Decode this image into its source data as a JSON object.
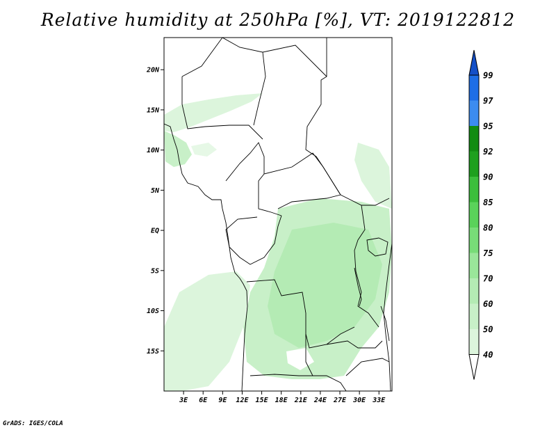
{
  "title": "Relative humidity at 250hPa [%], VT: 2019122812",
  "credit": "GrADS: IGES/COLA",
  "map": {
    "lon_range": [
      0,
      35
    ],
    "lat_range": [
      -20,
      24
    ],
    "lon_ticks": [
      {
        "value": 3,
        "label": "3E"
      },
      {
        "value": 6,
        "label": "6E"
      },
      {
        "value": 9,
        "label": "9E"
      },
      {
        "value": 12,
        "label": "12E"
      },
      {
        "value": 15,
        "label": "15E"
      },
      {
        "value": 18,
        "label": "18E"
      },
      {
        "value": 21,
        "label": "21E"
      },
      {
        "value": 24,
        "label": "24E"
      },
      {
        "value": 27,
        "label": "27E"
      },
      {
        "value": 30,
        "label": "30E"
      },
      {
        "value": 33,
        "label": "33E"
      }
    ],
    "lat_ticks": [
      {
        "value": 20,
        "label": "20N"
      },
      {
        "value": 15,
        "label": "15N"
      },
      {
        "value": 10,
        "label": "10N"
      },
      {
        "value": 5,
        "label": "5N"
      },
      {
        "value": 0,
        "label": "EQ"
      },
      {
        "value": -5,
        "label": "5S"
      },
      {
        "value": -10,
        "label": "10S"
      },
      {
        "value": -15,
        "label": "15S"
      }
    ]
  },
  "colorbar": {
    "levels": [
      {
        "label": "40",
        "color": "#f0fcf0"
      },
      {
        "label": "50",
        "color": "#dcf5dc"
      },
      {
        "label": "60",
        "color": "#c8f0c8"
      },
      {
        "label": "70",
        "color": "#b4ebb4"
      },
      {
        "label": "75",
        "color": "#9ae69a"
      },
      {
        "label": "80",
        "color": "#78dc78"
      },
      {
        "label": "85",
        "color": "#5ad25a"
      },
      {
        "label": "90",
        "color": "#3cbe3c"
      },
      {
        "label": "92",
        "color": "#1ea01e"
      },
      {
        "label": "95",
        "color": "#128c12"
      },
      {
        "label": "97",
        "color": "#3c8cf0"
      },
      {
        "label": "99",
        "color": "#1e6ee6"
      }
    ],
    "top_arrow_color": "#1450c8",
    "bottom_arrow_color": "#ffffff"
  }
}
